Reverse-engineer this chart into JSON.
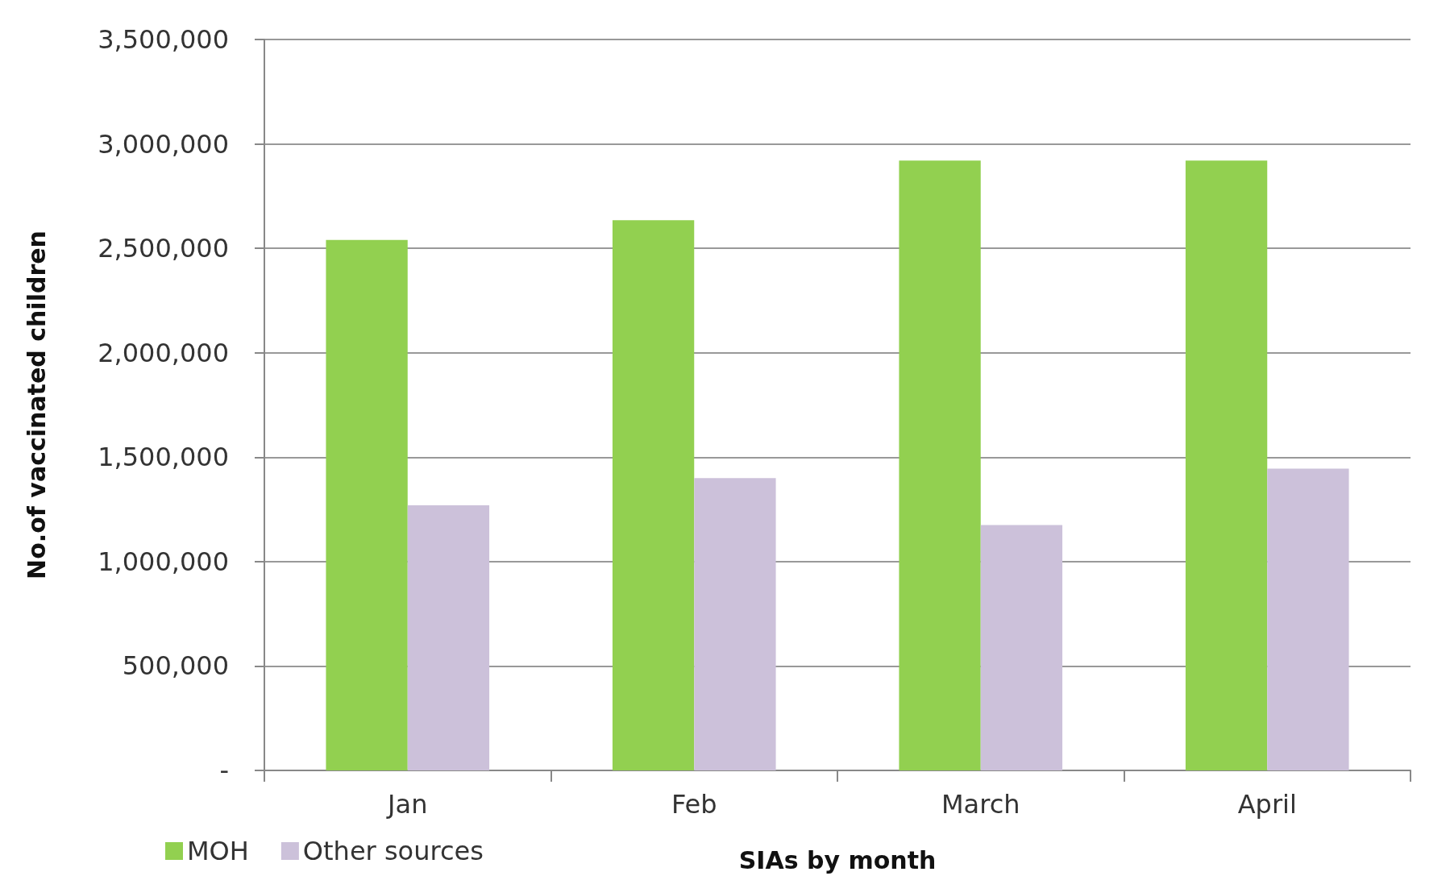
{
  "chart_data": {
    "type": "bar",
    "xlabel": "SIAs by month",
    "ylabel": "No.of vaccinated children",
    "categories": [
      "Jan",
      "Feb",
      "March",
      "April"
    ],
    "series": [
      {
        "name": "MOH",
        "color": "#92d050",
        "values": [
          2540000,
          2635000,
          2920000,
          2920000
        ]
      },
      {
        "name": "Other sources",
        "color": "#ccc1da",
        "values": [
          1270000,
          1400000,
          1175000,
          1445000
        ]
      }
    ],
    "ylim": [
      0,
      3500000
    ],
    "yticks": [
      {
        "value": 0,
        "label": "-"
      },
      {
        "value": 500000,
        "label": "500,000"
      },
      {
        "value": 1000000,
        "label": "1,000,000"
      },
      {
        "value": 1500000,
        "label": "1,500,000"
      },
      {
        "value": 2000000,
        "label": "2,000,000"
      },
      {
        "value": 2500000,
        "label": "2,500,000"
      },
      {
        "value": 3000000,
        "label": "3,000,000"
      },
      {
        "value": 3500000,
        "label": "3,500,000"
      }
    ],
    "grid": "y",
    "legend": "bottom left"
  }
}
